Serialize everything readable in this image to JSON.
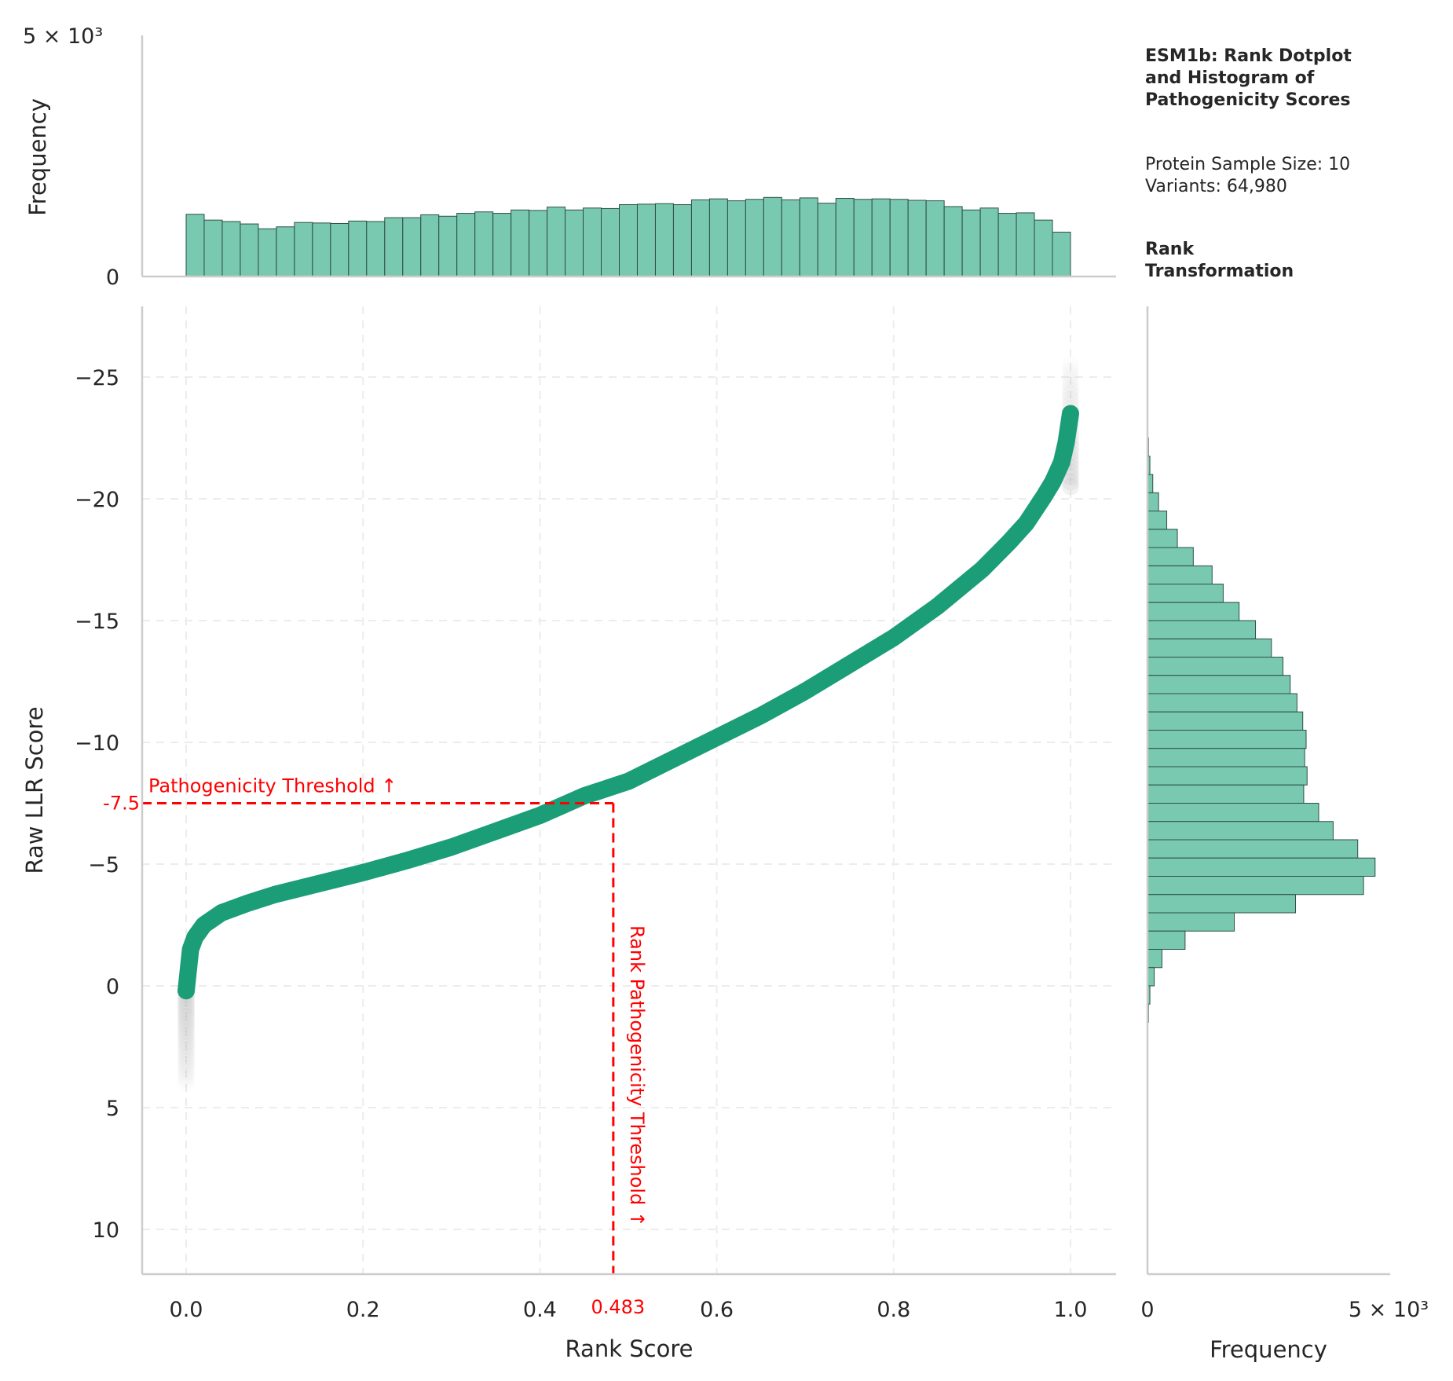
{
  "info": {
    "title_lines": [
      "ESM1b: Rank Dotplot",
      "and Histogram of",
      "Pathogenicity Scores"
    ],
    "sample_lines": [
      "Protein Sample Size: 10",
      "Variants: 64,980"
    ],
    "transform_lines": [
      "Rank",
      "Transformation"
    ]
  },
  "chart_data": [
    {
      "type": "scatter",
      "title": "ESM1b: Rank Dotplot and Histogram of Pathogenicity Scores",
      "xlabel": "Rank Score",
      "ylabel": "Raw LLR Score",
      "xlim": [
        -0.05,
        1.05
      ],
      "ylim": [
        11.5,
        -28
      ],
      "y_inverted": true,
      "grid": true,
      "x_ticks": [
        "0.0",
        "0.2",
        "0.4",
        "0.6",
        "0.8",
        "1.0"
      ],
      "x_tick_values": [
        0.0,
        0.2,
        0.4,
        0.6,
        0.8,
        1.0
      ],
      "y_ticks": [
        "−25",
        "−20",
        "−15",
        "−10",
        "−5",
        "0",
        "5",
        "10"
      ],
      "y_tick_values": [
        -25,
        -20,
        -15,
        -10,
        -5,
        0,
        5,
        10
      ],
      "point_color": "#1b9e77",
      "tail_color": "#bdbdbd",
      "curve": {
        "x": [
          0.0,
          0.005,
          0.01,
          0.02,
          0.04,
          0.07,
          0.1,
          0.15,
          0.2,
          0.25,
          0.3,
          0.35,
          0.4,
          0.45,
          0.483,
          0.5,
          0.55,
          0.6,
          0.65,
          0.7,
          0.75,
          0.8,
          0.85,
          0.9,
          0.93,
          0.95,
          0.97,
          0.98,
          0.99,
          0.995,
          1.0
        ],
        "y": [
          0.2,
          -1.5,
          -2.0,
          -2.5,
          -3.0,
          -3.4,
          -3.75,
          -4.2,
          -4.65,
          -5.15,
          -5.7,
          -6.35,
          -7.0,
          -7.8,
          -7.5,
          -8.4,
          -9.3,
          -10.2,
          -11.1,
          -12.1,
          -13.2,
          -14.3,
          -15.6,
          -17.1,
          -18.2,
          -19.0,
          -20.1,
          -20.7,
          -21.5,
          -22.3,
          -23.5
        ]
      },
      "lower_tail": {
        "x": 0.0,
        "y_range": [
          0.2,
          4.0
        ]
      },
      "upper_tail": {
        "x": 1.0,
        "y_range": [
          -20.5,
          -25.5
        ]
      },
      "annotations": [
        {
          "label": "Pathogenicity Threshold ↑",
          "axis_label": "-7.5",
          "value": -7.5,
          "orientation": "horizontal"
        },
        {
          "label": "Rank Pathogenicity Threshold ↑",
          "axis_label": "0.483",
          "value": 0.483,
          "orientation": "vertical"
        }
      ]
    },
    {
      "type": "bar",
      "title": "",
      "ylabel": "Frequency",
      "ylim": [
        0,
        5000
      ],
      "y_ticks": [
        "0",
        "5 × 10³"
      ],
      "bin_range": [
        0,
        1
      ],
      "values": [
        1290,
        1170,
        1140,
        1090,
        990,
        1030,
        1120,
        1110,
        1100,
        1150,
        1140,
        1220,
        1220,
        1280,
        1250,
        1310,
        1340,
        1310,
        1380,
        1370,
        1440,
        1380,
        1420,
        1410,
        1490,
        1500,
        1510,
        1490,
        1590,
        1610,
        1570,
        1600,
        1640,
        1590,
        1630,
        1520,
        1620,
        1600,
        1610,
        1600,
        1580,
        1570,
        1450,
        1380,
        1420,
        1310,
        1320,
        1170,
        920
      ],
      "color": "#66c2a5"
    },
    {
      "type": "bar",
      "orientation": "horizontal",
      "title": "",
      "xlabel": "Frequency",
      "xlim": [
        0,
        5000
      ],
      "x_ticks": [
        "0",
        "5 × 10³"
      ],
      "bin_edges_start": -22.5,
      "bin_width": 0.75,
      "values": [
        20,
        50,
        110,
        230,
        400,
        620,
        950,
        1340,
        1570,
        1900,
        2240,
        2570,
        2810,
        2960,
        3100,
        3220,
        3290,
        3260,
        3310,
        3240,
        3550,
        3850,
        4360,
        4720,
        4480,
        3070,
        1800,
        780,
        300,
        140,
        50,
        20
      ],
      "color": "#66c2a5"
    }
  ]
}
